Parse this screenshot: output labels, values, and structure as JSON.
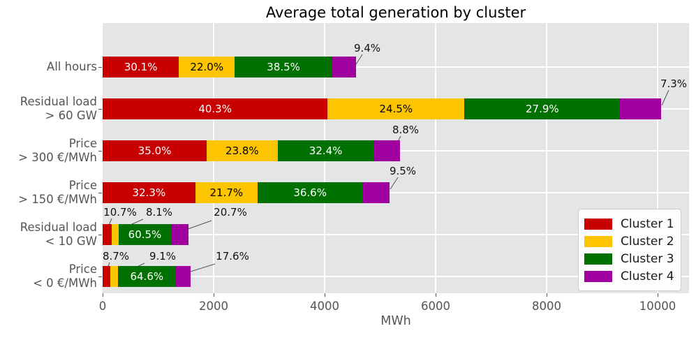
{
  "title": "Average total generation by cluster",
  "axes": {
    "xlabel": "MWh",
    "x_ticks": [
      0,
      2000,
      4000,
      6000,
      8000,
      10000
    ]
  },
  "legend": {
    "items": [
      {
        "label": "Cluster 1",
        "color": "#c80000"
      },
      {
        "label": "Cluster 2",
        "color": "#fcc500"
      },
      {
        "label": "Cluster 3",
        "color": "#007000"
      },
      {
        "label": "Cluster 4",
        "color": "#9f009f"
      }
    ]
  },
  "colors": {
    "plot_bg": "#e5e5e5",
    "grid": "#ffffff",
    "tick_text": "#555555",
    "annotation_text": "#111111",
    "leader_line": "#555555",
    "legend_bg": "#ffffff",
    "legend_border": "#cccccc"
  },
  "chart_data": {
    "type": "bar",
    "orientation": "horizontal",
    "stacked": true,
    "title": "Average total generation by cluster",
    "xlabel": "MWh",
    "ylabel": "",
    "xlim": [
      0,
      10560
    ],
    "x_ticks": [
      0,
      2000,
      4000,
      6000,
      8000,
      10000
    ],
    "grid": true,
    "legend_position": "lower right",
    "categories": [
      "All hours",
      "Residual load > 60 GW",
      "Price > 300 €/MWh",
      "Price > 150 €/MWh",
      "Residual load < 10 GW",
      "Price < 0 €/MWh"
    ],
    "category_lines": [
      [
        "All hours"
      ],
      [
        "Residual load",
        "> 60 GW"
      ],
      [
        "Price",
        "> 300 €/MWh"
      ],
      [
        "Price",
        "> 150 €/MWh"
      ],
      [
        "Residual load",
        "< 10 GW"
      ],
      [
        "Price",
        "< 0 €/MWh"
      ]
    ],
    "totals_mwh": [
      4569,
      10060,
      5361,
      5175,
      1551,
      1590
    ],
    "series": [
      {
        "name": "Cluster 1",
        "color": "#c80000",
        "text_color": "#ffffff",
        "pct": [
          30.1,
          40.3,
          35.0,
          32.3,
          10.7,
          8.7
        ],
        "values_mwh": [
          1375,
          4054,
          1876,
          1670,
          166,
          138
        ]
      },
      {
        "name": "Cluster 2",
        "color": "#fcc500",
        "text_color": "#000000",
        "pct": [
          22.0,
          24.5,
          23.8,
          21.7,
          8.1,
          9.1
        ],
        "values_mwh": [
          1005,
          2465,
          1276,
          1122,
          126,
          145
        ]
      },
      {
        "name": "Cluster 3",
        "color": "#007000",
        "text_color": "#ffffff",
        "pct": [
          38.5,
          27.9,
          32.4,
          36.6,
          60.5,
          64.6
        ],
        "values_mwh": [
          1759,
          2807,
          1737,
          1892,
          938,
          1027
        ]
      },
      {
        "name": "Cluster 4",
        "color": "#9f009f",
        "text_color": "#ffffff",
        "pct": [
          9.4,
          7.3,
          8.8,
          9.5,
          20.7,
          17.6
        ],
        "values_mwh": [
          430,
          734,
          472,
          491,
          321,
          280
        ]
      }
    ]
  }
}
